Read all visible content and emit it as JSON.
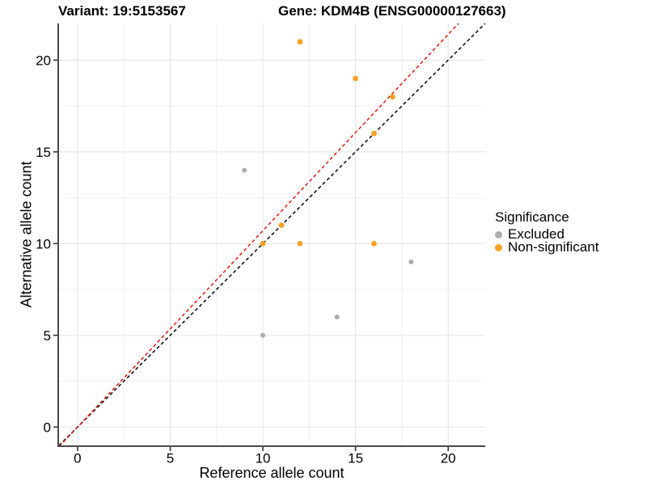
{
  "titles": {
    "variant": "Variant: 19:5153567",
    "gene": "Gene: KDM4B (ENSG00000127663)"
  },
  "chart_data": {
    "type": "scatter",
    "xlabel": "Reference allele count",
    "ylabel": "Alternative allele count",
    "xlim": [
      -1,
      22
    ],
    "ylim": [
      -1,
      22
    ],
    "x_ticks": [
      0,
      5,
      10,
      15,
      20
    ],
    "y_ticks": [
      0,
      5,
      10,
      15,
      20
    ],
    "x_minor": [
      2.5,
      7.5,
      12.5,
      17.5
    ],
    "y_minor": [
      2.5,
      7.5,
      12.5,
      17.5
    ],
    "grid": "major+minor",
    "legend": {
      "title": "Significance",
      "position": "right",
      "entries": [
        {
          "label": "Excluded",
          "color": "#ADADAD"
        },
        {
          "label": "Non-significant",
          "color": "#F9A125"
        }
      ]
    },
    "series": [
      {
        "name": "Excluded",
        "color": "#ADADAD",
        "radius": 3,
        "points": [
          [
            9,
            14
          ],
          [
            10,
            5
          ],
          [
            14,
            6
          ],
          [
            18,
            9
          ]
        ]
      },
      {
        "name": "Non-significant",
        "color": "#F9A125",
        "radius": 3.4,
        "points": [
          [
            10,
            10
          ],
          [
            11,
            11
          ],
          [
            12,
            10
          ],
          [
            12,
            21
          ],
          [
            15,
            19
          ],
          [
            16,
            10
          ],
          [
            16,
            16
          ],
          [
            17,
            18
          ]
        ]
      }
    ],
    "lines": [
      {
        "name": "identity-line",
        "slope": 1,
        "intercept": 0,
        "color": "#111111",
        "style": "dashed"
      },
      {
        "name": "fit-line",
        "slope": 1.07,
        "intercept": 0,
        "color": "#E8251F",
        "style": "dashed"
      }
    ]
  },
  "colors": {
    "background": "#FFFFFF",
    "grid_major": "#E3E3E3",
    "grid_minor": "#F0F0F0",
    "axis_line": "#4A4A4A",
    "tick": "#333333",
    "text": "#000000"
  }
}
